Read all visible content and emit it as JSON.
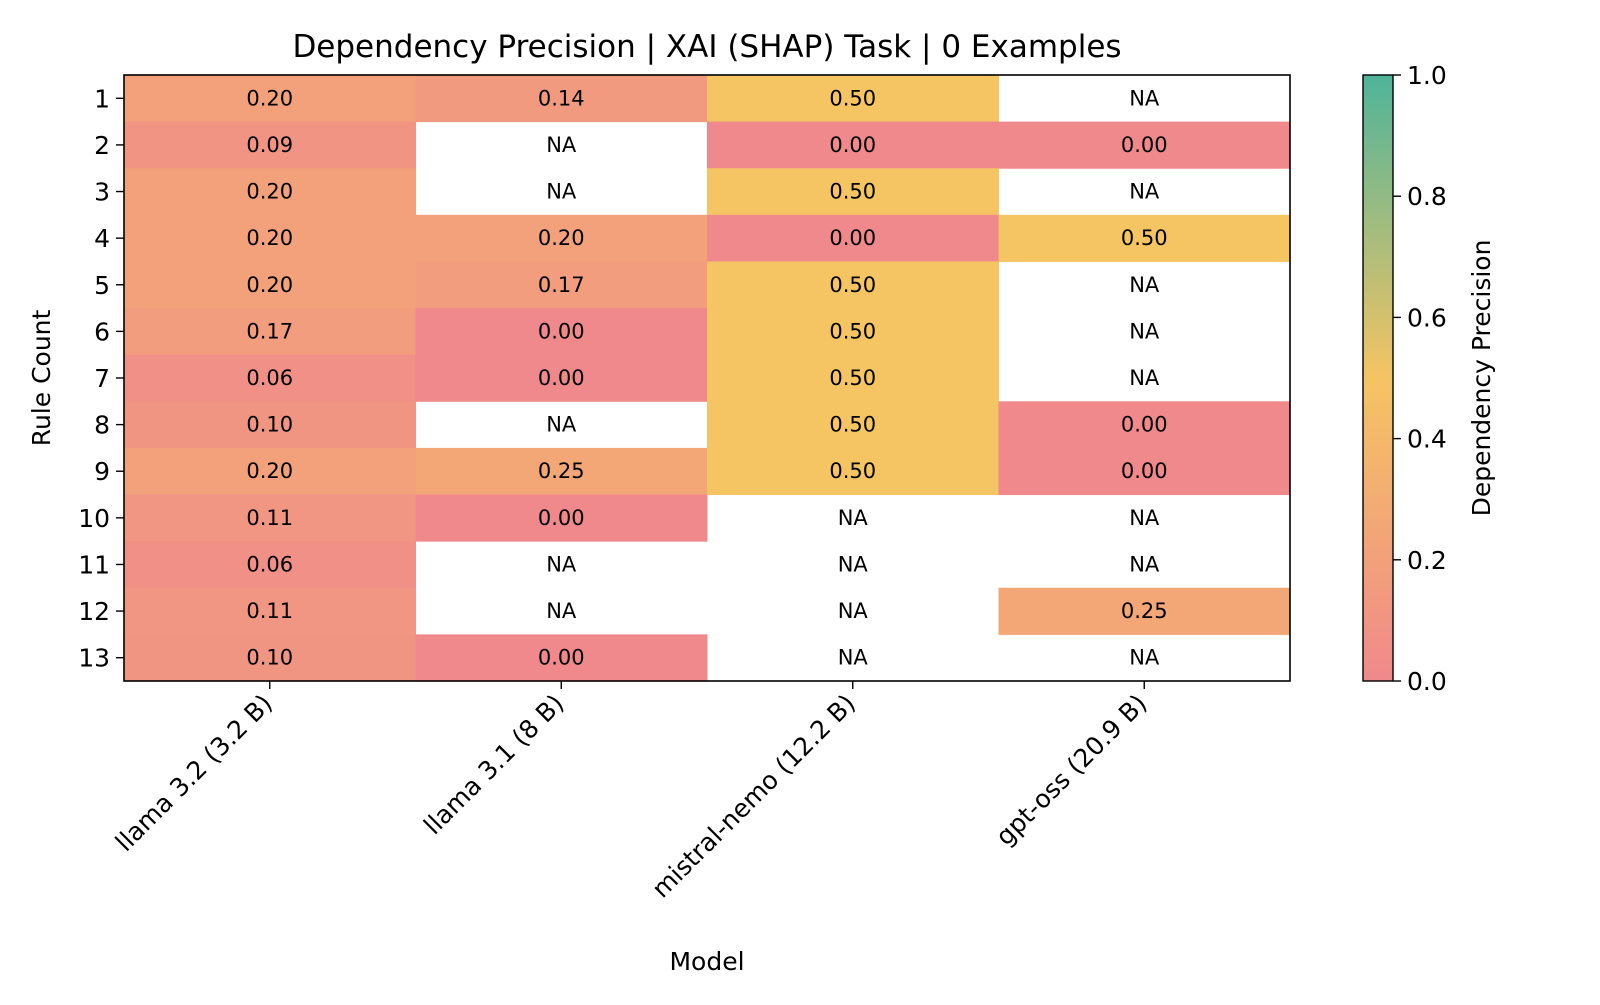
{
  "chart_data": {
    "type": "heatmap",
    "title": "Dependency Precision | XAI (SHAP) Task | 0 Examples",
    "xlabel": "Model",
    "ylabel": "Rule Count",
    "x_categories": [
      "llama 3.2 (3.2 B)",
      "llama 3.1 (8 B)",
      "mistral-nemo (12.2 B)",
      "gpt-oss (20.9 B)"
    ],
    "y_categories": [
      "1",
      "2",
      "3",
      "4",
      "5",
      "6",
      "7",
      "8",
      "9",
      "10",
      "11",
      "12",
      "13"
    ],
    "values": [
      [
        0.2,
        0.14,
        0.5,
        null
      ],
      [
        0.09,
        null,
        0.0,
        0.0
      ],
      [
        0.2,
        null,
        0.5,
        null
      ],
      [
        0.2,
        0.2,
        0.0,
        0.5
      ],
      [
        0.2,
        0.17,
        0.5,
        null
      ],
      [
        0.17,
        0.0,
        0.5,
        null
      ],
      [
        0.06,
        0.0,
        0.5,
        null
      ],
      [
        0.1,
        null,
        0.5,
        0.0
      ],
      [
        0.2,
        0.25,
        0.5,
        0.0
      ],
      [
        0.11,
        0.0,
        null,
        null
      ],
      [
        0.06,
        null,
        null,
        null
      ],
      [
        0.11,
        null,
        null,
        0.25
      ],
      [
        0.1,
        0.0,
        null,
        null
      ]
    ],
    "missing_label": "NA",
    "value_format_decimals": 2,
    "colorbar": {
      "label": "Dependency Precision",
      "range": [
        0.0,
        1.0
      ],
      "ticks": [
        "0.0",
        "0.2",
        "0.4",
        "0.6",
        "0.8",
        "1.0"
      ],
      "colors": [
        "#f0898b",
        "#f5c463",
        "#4fb49a"
      ]
    },
    "grid": false,
    "legend": "colorbar-right"
  }
}
